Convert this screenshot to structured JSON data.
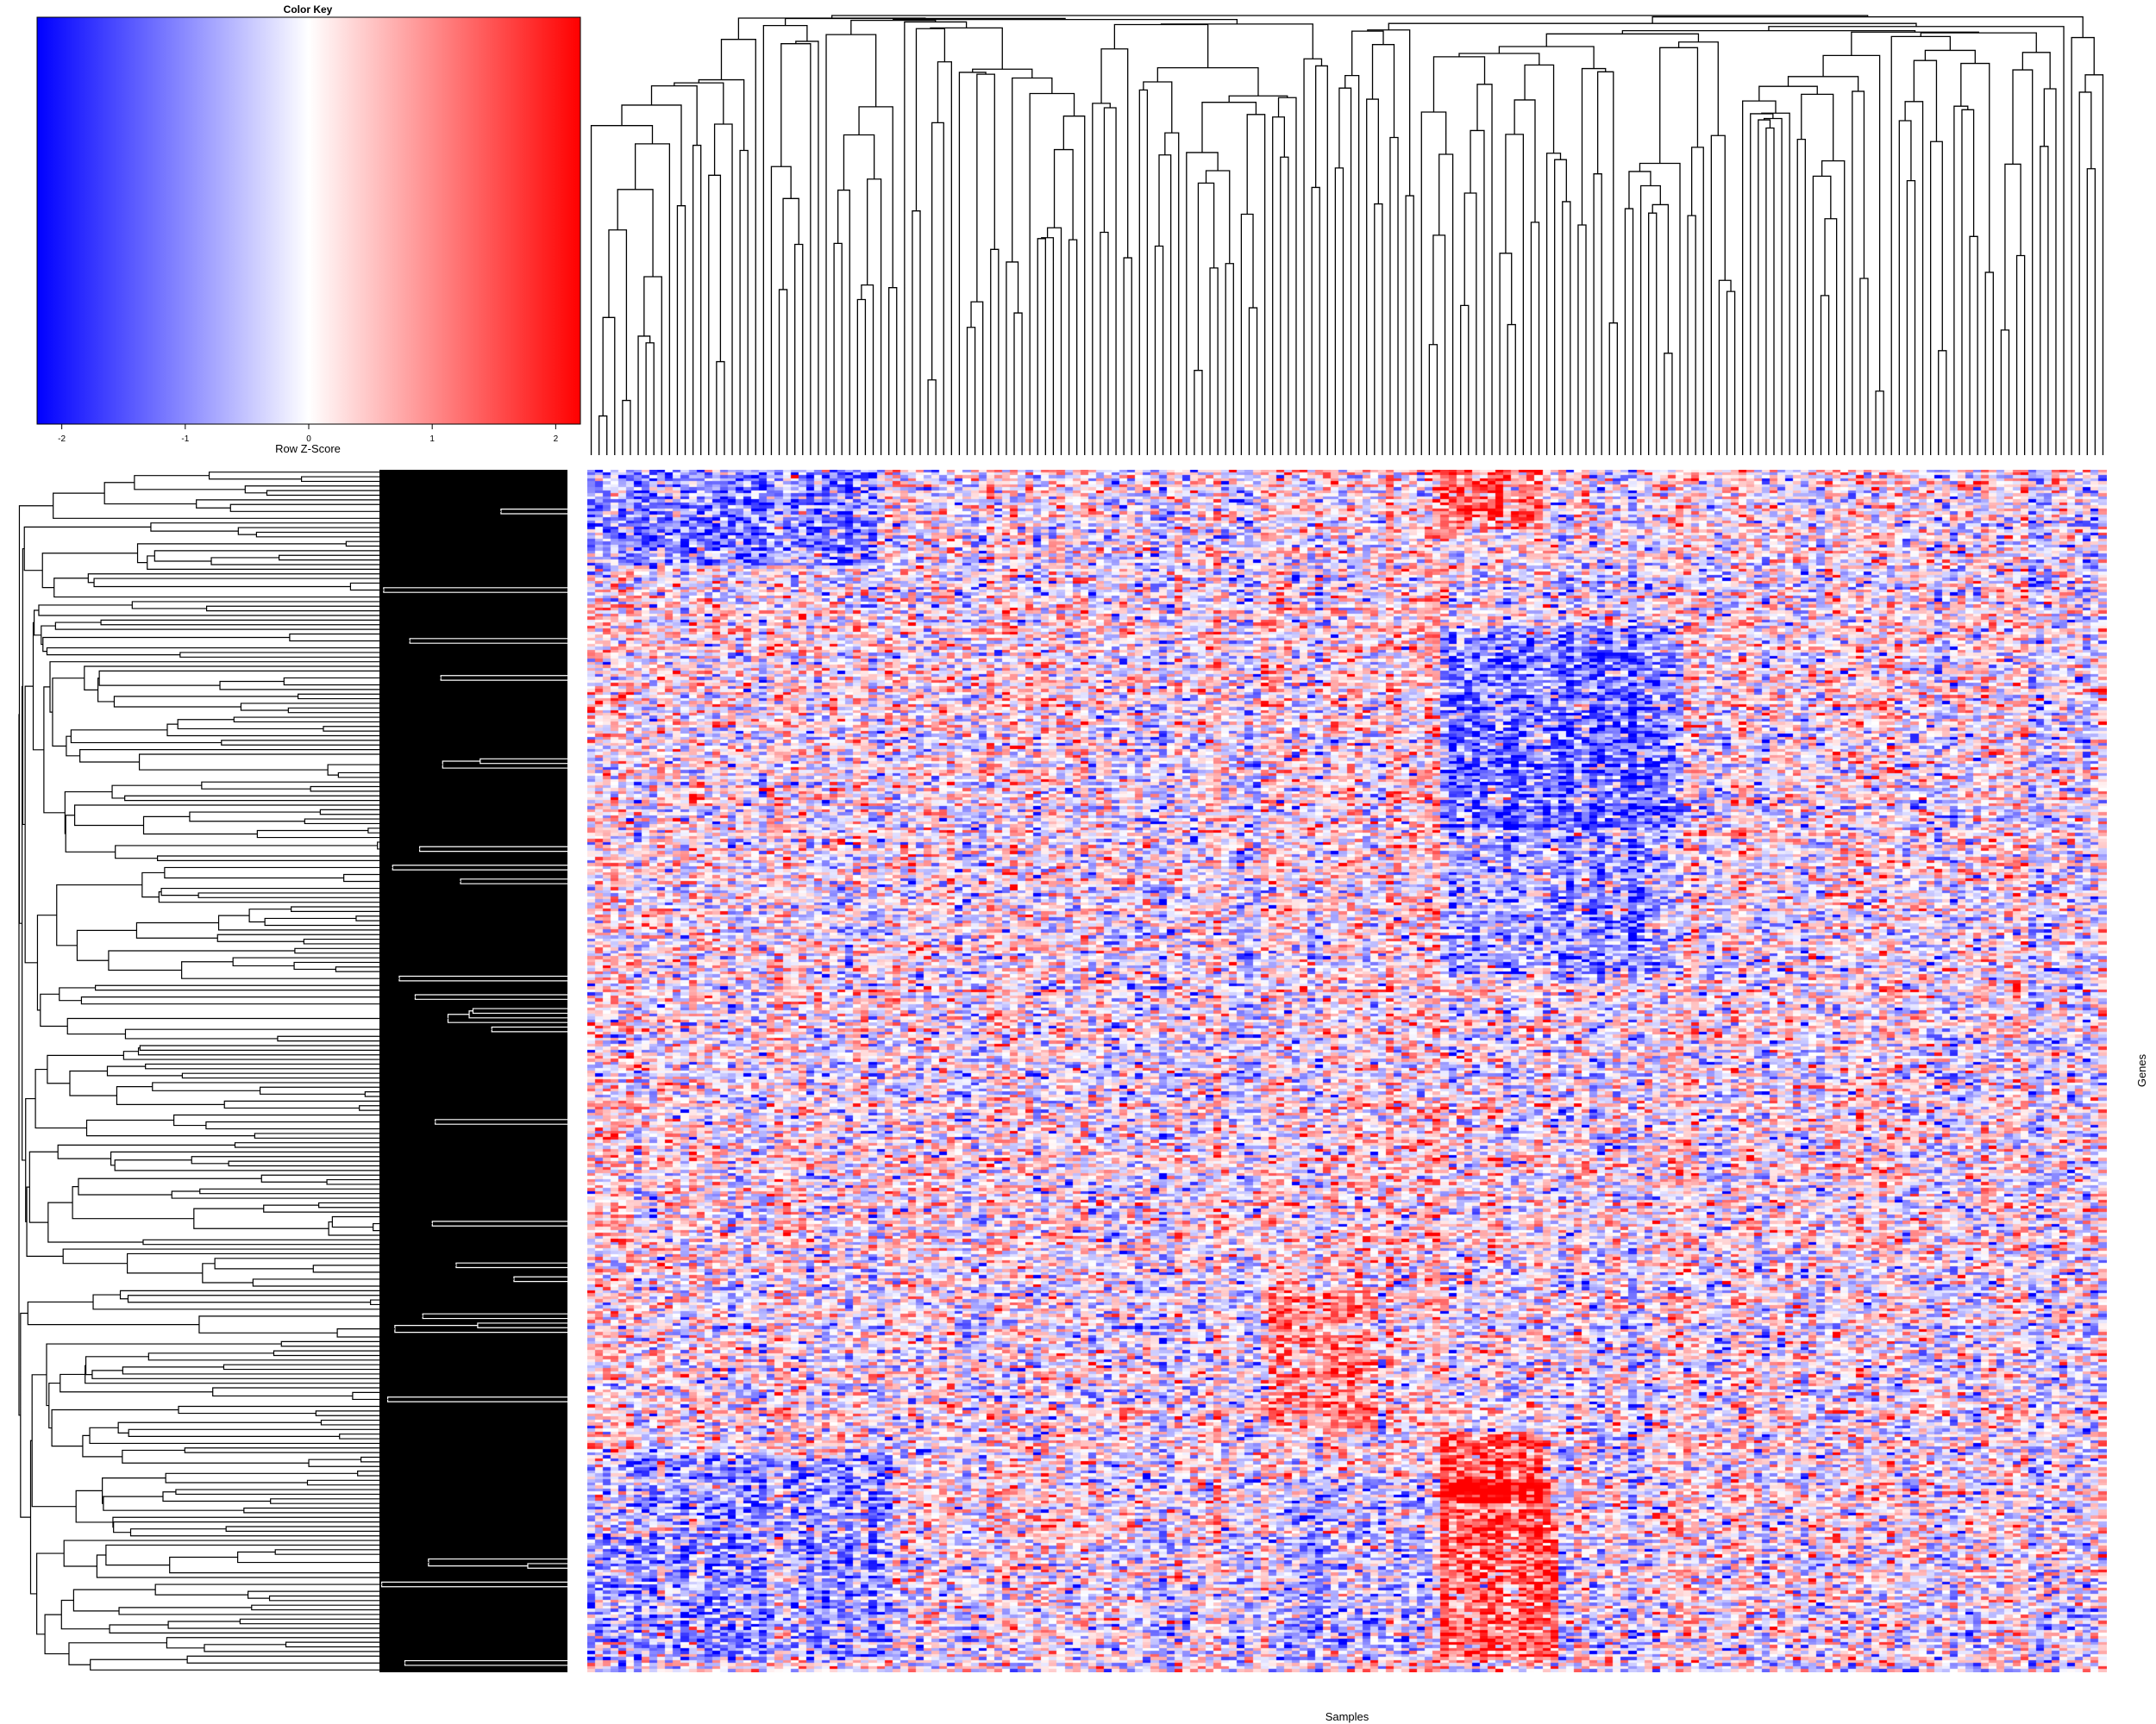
{
  "chart_data": {
    "type": "heatmap",
    "title": "",
    "xlabel": "Samples",
    "ylabel": "Genes",
    "color_key": {
      "title": "Color Key",
      "xlabel": "Row Z-Score",
      "range": [
        -2.2,
        2.2
      ],
      "ticks": [
        -2,
        -1,
        0,
        1,
        2
      ],
      "tick_labels": [
        "-2",
        "-1",
        "0",
        "1",
        "2"
      ],
      "colors": {
        "low": "#0000FF",
        "mid": "#FFFFFF",
        "high": "#FF0000"
      }
    },
    "row_dendrogram": "shown",
    "column_dendrogram": "shown",
    "n_columns": 194,
    "n_rows": 400,
    "value_scale": "row z-score",
    "block_pattern": [
      {
        "rows": [
          0.0,
          0.08
        ],
        "cols": [
          0.0,
          0.19
        ],
        "mean_z": -1.2
      },
      {
        "rows": [
          0.0,
          0.05
        ],
        "cols": [
          0.56,
          0.63
        ],
        "mean_z": 1.3
      },
      {
        "rows": [
          0.13,
          0.3
        ],
        "cols": [
          0.56,
          0.72
        ],
        "mean_z": -1.3
      },
      {
        "rows": [
          0.3,
          0.42
        ],
        "cols": [
          0.56,
          0.72
        ],
        "mean_z": -0.8
      },
      {
        "rows": [
          0.68,
          0.8
        ],
        "cols": [
          0.45,
          0.52
        ],
        "mean_z": 1.0
      },
      {
        "rows": [
          0.8,
          0.86
        ],
        "cols": [
          0.56,
          0.63
        ],
        "mean_z": 1.5
      },
      {
        "rows": [
          0.84,
          0.99
        ],
        "cols": [
          0.56,
          0.64
        ],
        "mean_z": 1.4
      },
      {
        "rows": [
          0.82,
          0.99
        ],
        "cols": [
          0.0,
          0.2
        ],
        "mean_z": -0.9
      },
      {
        "rows": [
          0.84,
          0.99
        ],
        "cols": [
          0.45,
          0.56
        ],
        "mean_z": -0.7
      }
    ]
  }
}
